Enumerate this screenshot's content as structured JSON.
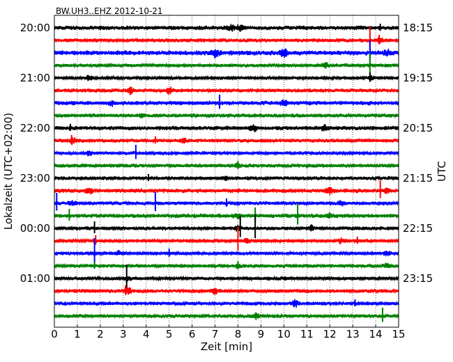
{
  "chart_data": {
    "type": "line",
    "title": "BW.UH3..EHZ 2012-10-21",
    "xlabel": "Zeit  [min]",
    "ylabel_left": "Lokalzeit (UTC+02:00)",
    "ylabel_right": "UTC",
    "xlim": [
      0,
      15
    ],
    "xticks": [
      "0",
      "1",
      "2",
      "3",
      "4",
      "5",
      "6",
      "7",
      "8",
      "9",
      "10",
      "11",
      "12",
      "13",
      "14",
      "15"
    ],
    "grid": "vertical dotted lines at each minute",
    "trace_interval_min": 15,
    "trace_colors": [
      "#000000",
      "#ff0000",
      "#0000ff",
      "#008000"
    ],
    "left_ticks": [
      {
        "trace_index": 0,
        "label": "20:00"
      },
      {
        "trace_index": 4,
        "label": "21:00"
      },
      {
        "trace_index": 8,
        "label": "22:00"
      },
      {
        "trace_index": 12,
        "label": "23:00"
      },
      {
        "trace_index": 16,
        "label": "00:00"
      },
      {
        "trace_index": 20,
        "label": "01:00"
      }
    ],
    "right_ticks": [
      {
        "trace_index": 0,
        "label": "18:15"
      },
      {
        "trace_index": 4,
        "label": "19:15"
      },
      {
        "trace_index": 8,
        "label": "20:15"
      },
      {
        "trace_index": 12,
        "label": "21:15"
      },
      {
        "trace_index": 16,
        "label": "22:15"
      },
      {
        "trace_index": 20,
        "label": "23:15"
      }
    ],
    "traces": [
      {
        "index": 0,
        "color": "#000000",
        "noise": 3.5,
        "bursts": [
          [
            7.7,
            3
          ],
          [
            8.1,
            3
          ]
        ],
        "spikes": [
          [
            14.2,
            6
          ]
        ]
      },
      {
        "index": 1,
        "color": "#ff0000",
        "noise": 3.0,
        "bursts": [
          [
            14.2,
            3
          ]
        ],
        "spikes": [
          [
            13.75,
            20
          ],
          [
            14.15,
            8
          ]
        ]
      },
      {
        "index": 2,
        "color": "#0000ff",
        "noise": 4.0,
        "bursts": [
          [
            7.0,
            5
          ],
          [
            10.0,
            5
          ],
          [
            14.5,
            3
          ]
        ],
        "spikes": [
          [
            13.75,
            18
          ]
        ]
      },
      {
        "index": 3,
        "color": "#008000",
        "noise": 3.0,
        "bursts": [
          [
            11.8,
            3
          ]
        ],
        "spikes": [
          [
            13.75,
            18
          ]
        ]
      },
      {
        "index": 4,
        "color": "#000000",
        "noise": 2.5,
        "bursts": [
          [
            1.5,
            3
          ],
          [
            13.8,
            3
          ]
        ],
        "spikes": [
          [
            13.75,
            8
          ]
        ]
      },
      {
        "index": 5,
        "color": "#ff0000",
        "noise": 3.0,
        "bursts": [
          [
            3.3,
            4
          ],
          [
            5.0,
            4
          ]
        ],
        "spikes": []
      },
      {
        "index": 6,
        "color": "#0000ff",
        "noise": 3.5,
        "bursts": [
          [
            2.5,
            3
          ],
          [
            10.0,
            4
          ]
        ],
        "spikes": [
          [
            7.2,
            12
          ]
        ]
      },
      {
        "index": 7,
        "color": "#008000",
        "noise": 3.0,
        "bursts": [
          [
            3.8,
            3
          ]
        ],
        "spikes": []
      },
      {
        "index": 8,
        "color": "#000000",
        "noise": 3.5,
        "bursts": [
          [
            8.7,
            4
          ],
          [
            11.8,
            3
          ]
        ],
        "spikes": [
          [
            0.7,
            6
          ]
        ]
      },
      {
        "index": 9,
        "color": "#ff0000",
        "noise": 3.0,
        "bursts": [
          [
            0.8,
            4
          ],
          [
            5.6,
            3
          ]
        ],
        "spikes": [
          [
            0.75,
            8
          ],
          [
            4.4,
            6
          ]
        ]
      },
      {
        "index": 10,
        "color": "#0000ff",
        "noise": 3.0,
        "bursts": [
          [
            1.5,
            3
          ]
        ],
        "spikes": [
          [
            3.55,
            12
          ]
        ]
      },
      {
        "index": 11,
        "color": "#008000",
        "noise": 3.0,
        "bursts": [
          [
            8.0,
            3
          ]
        ],
        "spikes": [
          [
            8.0,
            7
          ]
        ]
      },
      {
        "index": 12,
        "color": "#000000",
        "noise": 3.0,
        "bursts": [
          [
            7.5,
            2
          ]
        ],
        "spikes": [
          [
            4.1,
            6
          ]
        ]
      },
      {
        "index": 13,
        "color": "#ff0000",
        "noise": 3.5,
        "bursts": [
          [
            1.5,
            4
          ],
          [
            12.0,
            4
          ],
          [
            14.5,
            2
          ]
        ],
        "spikes": [
          [
            14.2,
            15
          ]
        ]
      },
      {
        "index": 14,
        "color": "#0000ff",
        "noise": 3.0,
        "bursts": [
          [
            0.8,
            3
          ],
          [
            12.5,
            3
          ]
        ],
        "spikes": [
          [
            0.1,
            15
          ],
          [
            4.4,
            16
          ],
          [
            7.5,
            7
          ]
        ]
      },
      {
        "index": 15,
        "color": "#008000",
        "noise": 3.5,
        "bursts": [
          [
            8.0,
            3
          ],
          [
            12.0,
            2
          ]
        ],
        "spikes": [
          [
            0.65,
            10
          ],
          [
            8.75,
            12
          ],
          [
            10.6,
            18
          ]
        ]
      },
      {
        "index": 16,
        "color": "#000000",
        "noise": 3.0,
        "bursts": [
          [
            8.0,
            3
          ],
          [
            11.2,
            3
          ]
        ],
        "spikes": [
          [
            1.75,
            10
          ],
          [
            8.1,
            18
          ],
          [
            8.75,
            20
          ]
        ]
      },
      {
        "index": 17,
        "color": "#ff0000",
        "noise": 2.5,
        "bursts": [
          [
            8.4,
            4
          ],
          [
            12.5,
            3
          ]
        ],
        "spikes": [
          [
            1.8,
            8
          ],
          [
            8.0,
            20
          ],
          [
            13.2,
            6
          ]
        ]
      },
      {
        "index": 18,
        "color": "#0000ff",
        "noise": 2.5,
        "bursts": [
          [
            2.8,
            3
          ],
          [
            14.5,
            3
          ]
        ],
        "spikes": [
          [
            1.75,
            22
          ],
          [
            5.0,
            7
          ]
        ]
      },
      {
        "index": 19,
        "color": "#008000",
        "noise": 3.0,
        "bursts": [
          [
            8.0,
            2
          ],
          [
            14.5,
            3
          ]
        ],
        "spikes": [
          [
            1.75,
            6
          ],
          [
            8.0,
            7
          ]
        ]
      },
      {
        "index": 20,
        "color": "#000000",
        "noise": 2.5,
        "bursts": [
          [
            3.2,
            3
          ],
          [
            10.0,
            2
          ]
        ],
        "spikes": [
          [
            3.15,
            20
          ]
        ]
      },
      {
        "index": 21,
        "color": "#ff0000",
        "noise": 3.0,
        "bursts": [
          [
            3.2,
            4
          ],
          [
            7.0,
            4
          ]
        ],
        "spikes": [
          [
            3.1,
            8
          ]
        ]
      },
      {
        "index": 22,
        "color": "#0000ff",
        "noise": 3.0,
        "bursts": [
          [
            10.5,
            4
          ]
        ],
        "spikes": [
          [
            13.1,
            6
          ]
        ]
      },
      {
        "index": 23,
        "color": "#008000",
        "noise": 3.0,
        "bursts": [
          [
            8.8,
            4
          ]
        ],
        "spikes": [
          [
            14.3,
            12
          ]
        ]
      }
    ]
  }
}
